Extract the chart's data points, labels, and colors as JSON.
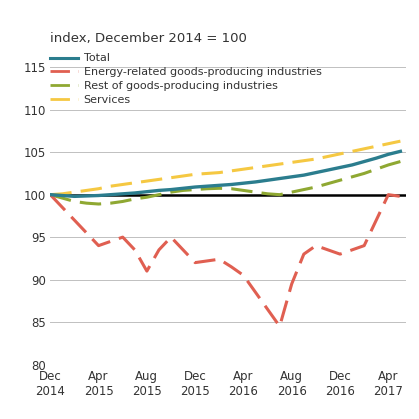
{
  "title": "index, December 2014 = 100",
  "ylim": [
    80,
    117
  ],
  "yticks": [
    80,
    85,
    90,
    95,
    100,
    105,
    110,
    115
  ],
  "xtick_labels": [
    "Dec\n2014",
    "Apr\n2015",
    "Aug\n2015",
    "Dec\n2015",
    "Apr\n2016",
    "Aug\n2016",
    "Dec\n2016",
    "Apr\n2017"
  ],
  "xtick_positions": [
    0,
    4,
    8,
    12,
    16,
    20,
    24,
    28
  ],
  "xlim": [
    0,
    29.5
  ],
  "background_color": "#ffffff",
  "grid_color": "#c0c0c0",
  "total_color": "#2b7d8e",
  "energy_color": "#e05f51",
  "rest_color": "#8fa832",
  "services_color": "#f5c842",
  "total_x": [
    0,
    1,
    2,
    3,
    4,
    5,
    6,
    7,
    8,
    9,
    10,
    11,
    12,
    13,
    14,
    15,
    16,
    17,
    18,
    19,
    20,
    21,
    22,
    23,
    24,
    25,
    26,
    27,
    28,
    29
  ],
  "total_y": [
    100,
    99.9,
    99.8,
    99.85,
    99.9,
    100.0,
    100.1,
    100.2,
    100.35,
    100.5,
    100.6,
    100.75,
    100.9,
    101.0,
    101.1,
    101.2,
    101.35,
    101.5,
    101.7,
    101.9,
    102.1,
    102.3,
    102.6,
    102.9,
    103.2,
    103.5,
    103.9,
    104.3,
    104.75,
    105.1
  ],
  "energy_x": [
    0,
    1,
    2,
    3,
    4,
    5,
    6,
    7,
    8,
    9,
    10,
    11,
    12,
    13,
    14,
    15,
    16,
    17,
    18,
    19,
    20,
    21,
    22,
    23,
    24,
    25,
    26,
    27,
    28,
    29
  ],
  "energy_y": [
    100,
    98.5,
    97.0,
    95.5,
    94.0,
    94.5,
    95.0,
    93.5,
    91.0,
    93.5,
    95.0,
    93.5,
    92.0,
    92.2,
    92.4,
    91.5,
    90.5,
    88.5,
    86.5,
    84.5,
    89.5,
    93.0,
    94.0,
    93.5,
    93.0,
    93.5,
    94.0,
    97.0,
    100.0,
    99.8
  ],
  "rest_x": [
    0,
    1,
    2,
    3,
    4,
    5,
    6,
    7,
    8,
    9,
    10,
    11,
    12,
    13,
    14,
    15,
    16,
    17,
    18,
    19,
    20,
    21,
    22,
    23,
    24,
    25,
    26,
    27,
    28,
    29
  ],
  "rest_y": [
    100,
    99.6,
    99.2,
    99.0,
    98.9,
    99.0,
    99.2,
    99.5,
    99.7,
    100.0,
    100.3,
    100.5,
    100.6,
    100.7,
    100.75,
    100.7,
    100.5,
    100.3,
    100.1,
    100.0,
    100.3,
    100.6,
    100.9,
    101.3,
    101.7,
    102.1,
    102.5,
    103.0,
    103.5,
    103.9
  ],
  "services_x": [
    0,
    1,
    2,
    3,
    4,
    5,
    6,
    7,
    8,
    9,
    10,
    11,
    12,
    13,
    14,
    15,
    16,
    17,
    18,
    19,
    20,
    21,
    22,
    23,
    24,
    25,
    26,
    27,
    28,
    29
  ],
  "services_y": [
    100,
    100.1,
    100.3,
    100.5,
    100.7,
    101.0,
    101.2,
    101.4,
    101.6,
    101.8,
    102.0,
    102.2,
    102.4,
    102.5,
    102.6,
    102.8,
    103.0,
    103.2,
    103.4,
    103.6,
    103.8,
    104.0,
    104.2,
    104.5,
    104.8,
    105.1,
    105.4,
    105.7,
    106.0,
    106.3
  ]
}
